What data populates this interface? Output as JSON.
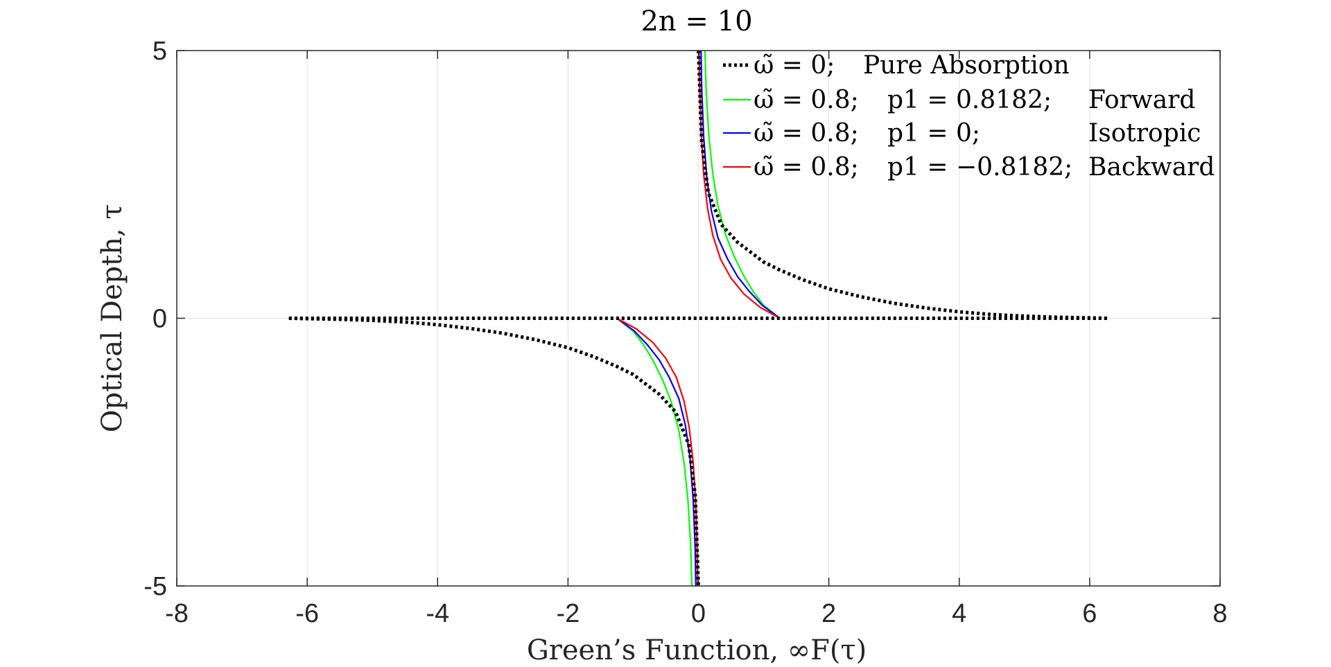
{
  "chart_data": {
    "type": "line",
    "title": "2n = 10",
    "xlabel": "Green’s Function, ∞F(τ)",
    "ylabel": "Optical Depth, τ",
    "xlim": [
      -8,
      8
    ],
    "ylim": [
      -5,
      5
    ],
    "xticks": [
      -8,
      -6,
      -4,
      -2,
      0,
      2,
      4,
      6,
      8
    ],
    "yticks": [
      -5,
      0,
      5
    ],
    "xtick_labels": [
      "-8",
      "-6",
      "-4",
      "-2",
      "0",
      "2",
      "4",
      "6",
      "8"
    ],
    "ytick_labels": [
      "-5",
      "0",
      "5"
    ],
    "grid": true,
    "legend_position": "top-right",
    "series": [
      {
        "name": "ω̃ = 0; Pure Absorption",
        "legend": [
          "ω̃ = 0;",
          "Pure Absorption"
        ],
        "color": "#000000",
        "style": "dotted",
        "upper_x": [
          0.0,
          0.05,
          0.15,
          0.35,
          0.6,
          1.0,
          1.25,
          1.6,
          2.0,
          2.5,
          3.0,
          3.5,
          4.0,
          4.5,
          5.0,
          5.5,
          6.0,
          6.28
        ],
        "upper_y": [
          5.0,
          3.3,
          2.35,
          1.75,
          1.42,
          1.05,
          0.9,
          0.72,
          0.55,
          0.4,
          0.28,
          0.19,
          0.12,
          0.07,
          0.04,
          0.02,
          0.008,
          0.0
        ],
        "lower_x": [
          -6.28,
          -6.0,
          -5.5,
          -5.0,
          -4.5,
          -4.0,
          -3.5,
          -3.0,
          -2.5,
          -2.0,
          -1.6,
          -1.25,
          -1.0,
          -0.6,
          -0.35,
          -0.15,
          -0.05,
          0.0
        ],
        "lower_y": [
          0.0,
          -0.008,
          -0.02,
          -0.04,
          -0.07,
          -0.12,
          -0.19,
          -0.28,
          -0.4,
          -0.55,
          -0.72,
          -0.9,
          -1.05,
          -1.42,
          -1.75,
          -2.35,
          -3.3,
          -5.0
        ],
        "baseline_x": [
          -6.28,
          6.28
        ]
      },
      {
        "name": "ω̃ = 0.8; p1 = 0.8182; Forward",
        "legend": [
          "ω̃ = 0.8;",
          "p1 = 0.8182;",
          "Forward"
        ],
        "color": "#00ff00",
        "style": "solid",
        "upper_x": [
          0.1,
          0.12,
          0.16,
          0.22,
          0.3,
          0.42,
          0.55,
          0.7,
          0.85,
          1.0,
          1.25
        ],
        "upper_y": [
          5.0,
          4.2,
          3.4,
          2.7,
          2.1,
          1.55,
          1.15,
          0.78,
          0.48,
          0.24,
          0.0
        ],
        "lower_x": [
          -1.25,
          -1.0,
          -0.85,
          -0.7,
          -0.55,
          -0.42,
          -0.3,
          -0.22,
          -0.16,
          -0.12,
          -0.1
        ],
        "lower_y": [
          0.0,
          -0.24,
          -0.48,
          -0.78,
          -1.15,
          -1.55,
          -2.1,
          -2.7,
          -3.4,
          -4.2,
          -5.0
        ]
      },
      {
        "name": "ω̃ = 0.8; p1 = 0; Isotropic",
        "legend": [
          "ω̃ = 0.8;",
          "p1 = 0;",
          "Isotropic"
        ],
        "color": "#0000ff",
        "style": "solid",
        "upper_x": [
          0.04,
          0.05,
          0.08,
          0.13,
          0.2,
          0.3,
          0.45,
          0.6,
          0.78,
          0.98,
          1.25
        ],
        "upper_y": [
          5.0,
          4.3,
          3.4,
          2.6,
          2.0,
          1.5,
          1.1,
          0.78,
          0.5,
          0.24,
          0.0
        ],
        "lower_x": [
          -1.25,
          -0.98,
          -0.78,
          -0.6,
          -0.45,
          -0.3,
          -0.2,
          -0.13,
          -0.08,
          -0.05,
          -0.04
        ],
        "lower_y": [
          0.0,
          -0.24,
          -0.5,
          -0.78,
          -1.1,
          -1.5,
          -2.0,
          -2.6,
          -3.4,
          -4.3,
          -5.0
        ]
      },
      {
        "name": "ω̃ = 0.8; p1 = −0.8182; Backward",
        "legend": [
          "ω̃ = 0.8;",
          "p1 = −0.8182;",
          "Backward"
        ],
        "color": "#ff0000",
        "style": "solid",
        "upper_x": [
          0.01,
          0.02,
          0.04,
          0.08,
          0.14,
          0.22,
          0.34,
          0.5,
          0.7,
          0.95,
          1.25
        ],
        "upper_y": [
          5.0,
          4.3,
          3.5,
          2.7,
          2.05,
          1.55,
          1.1,
          0.75,
          0.45,
          0.2,
          0.0
        ],
        "lower_x": [
          -1.25,
          -0.95,
          -0.7,
          -0.5,
          -0.34,
          -0.22,
          -0.14,
          -0.08,
          -0.04,
          -0.02,
          -0.01
        ],
        "lower_y": [
          0.0,
          -0.2,
          -0.45,
          -0.75,
          -1.1,
          -1.55,
          -2.05,
          -2.7,
          -3.5,
          -4.3,
          -5.0
        ]
      }
    ]
  }
}
